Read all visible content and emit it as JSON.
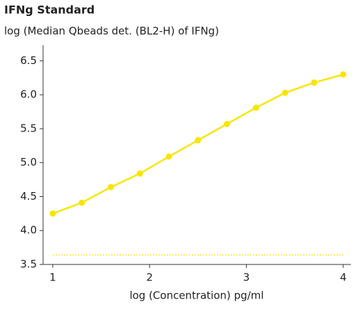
{
  "chart_data": {
    "type": "line",
    "title": "IFNg Standard",
    "subtitle": "log (Median Qbeads det. (BL2-H) of IFNg)",
    "x_label": "log (Concentration) pg/ml",
    "x": [
      1,
      1.3,
      1.6,
      1.9,
      2.2,
      2.5,
      2.8,
      3.1,
      3.4,
      3.7,
      4.0
    ],
    "series": [
      {
        "name": "IFNg",
        "color": "#f7e600",
        "values": [
          4.25,
          4.41,
          4.64,
          4.84,
          5.09,
          5.33,
          5.57,
          5.81,
          6.03,
          6.18,
          6.3
        ]
      }
    ],
    "reference_line": {
      "y": 3.64,
      "color": "#f7e600"
    },
    "xlim": [
      0.9,
      4.08
    ],
    "xticks": [
      1,
      2,
      3,
      4
    ],
    "ylim": [
      3.5,
      6.73
    ],
    "yticks": [
      3.5,
      4.0,
      4.5,
      5.0,
      5.5,
      6.0,
      6.5
    ],
    "grid": false,
    "legend": false
  }
}
